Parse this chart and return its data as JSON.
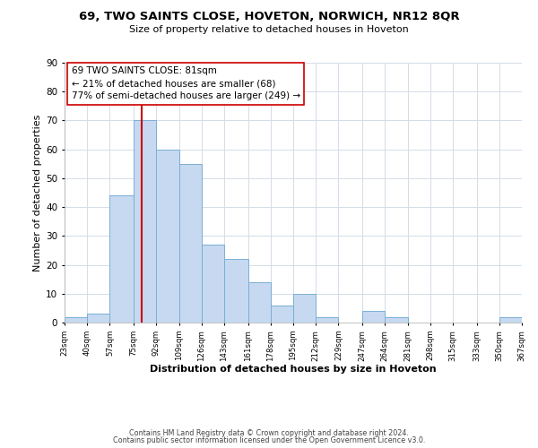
{
  "title1": "69, TWO SAINTS CLOSE, HOVETON, NORWICH, NR12 8QR",
  "title2": "Size of property relative to detached houses in Hoveton",
  "xlabel": "Distribution of detached houses by size in Hoveton",
  "ylabel": "Number of detached properties",
  "footer1": "Contains HM Land Registry data © Crown copyright and database right 2024.",
  "footer2": "Contains public sector information licensed under the Open Government Licence v3.0.",
  "bar_edges": [
    23,
    40,
    57,
    75,
    92,
    109,
    126,
    143,
    161,
    178,
    195,
    212,
    229,
    247,
    264,
    281,
    298,
    315,
    333,
    350,
    367
  ],
  "bar_heights": [
    2,
    3,
    44,
    70,
    60,
    55,
    27,
    22,
    14,
    6,
    10,
    2,
    0,
    4,
    2,
    0,
    0,
    0,
    0,
    2
  ],
  "bar_color": "#c6d9f0",
  "bar_edge_color": "#7bafd4",
  "property_line_x": 81,
  "property_line_color": "#cc0000",
  "ylim": [
    0,
    90
  ],
  "yticks": [
    0,
    10,
    20,
    30,
    40,
    50,
    60,
    70,
    80,
    90
  ],
  "annotation_line1": "69 TWO SAINTS CLOSE: 81sqm",
  "annotation_line2": "← 21% of detached houses are smaller (68)",
  "annotation_line3": "77% of semi-detached houses are larger (249) →",
  "annotation_box_color": "#ffffff",
  "annotation_box_edge": "#cc0000",
  "bg_color": "#ffffff",
  "grid_color": "#d4dce8"
}
